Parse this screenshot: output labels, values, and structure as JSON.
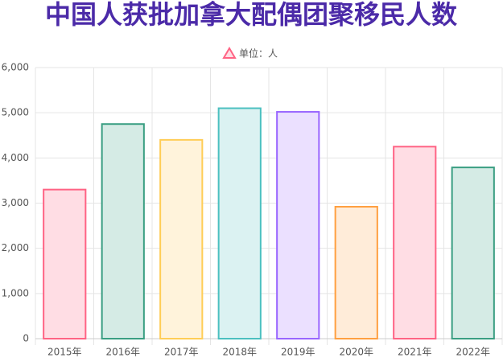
{
  "chart_data": {
    "type": "bar",
    "title": "中国人获批加拿大配偶团聚移民人数",
    "categories": [
      "2015年",
      "2016年",
      "2017年",
      "2018年",
      "2019年",
      "2020年",
      "2021年",
      "2022年"
    ],
    "series": [
      {
        "name": "单位：人",
        "values": [
          3300,
          4750,
          4400,
          5100,
          5020,
          2920,
          4250,
          3790
        ],
        "colors": [
          "#ff6384",
          "#3a9e82",
          "#ffcd56",
          "#4bc0c0",
          "#9966ff",
          "#ff9f40",
          "#ff6384",
          "#3a9e82"
        ],
        "fill_colors": [
          "#ffdde4",
          "#d5ebe5",
          "#fff3db",
          "#dbf2f2",
          "#ebe0ff",
          "#ffecd9",
          "#ffdde4",
          "#d5ebe5"
        ]
      }
    ],
    "ylim": [
      0,
      6000
    ],
    "yticks": [
      0,
      {
        "value": 1000,
        "label": "1,000"
      },
      {
        "value": 2000,
        "label": "2,000"
      },
      {
        "value": 3000,
        "label": "3,000"
      },
      {
        "value": 4000,
        "label": "4,000"
      },
      {
        "value": 5000,
        "label": "5,000"
      },
      {
        "value": 6000,
        "label": "6,000"
      }
    ],
    "grid": true
  }
}
